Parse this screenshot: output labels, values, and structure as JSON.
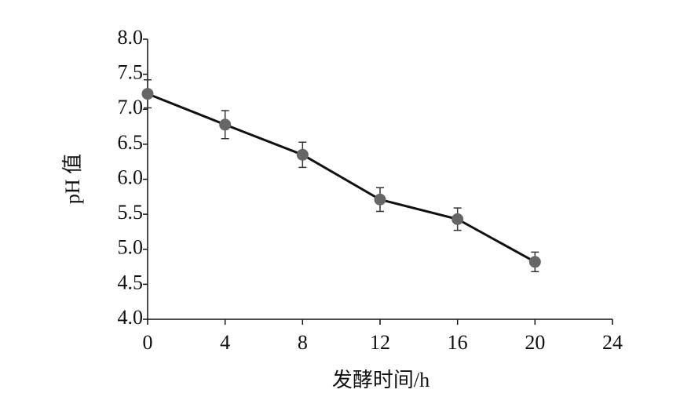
{
  "chart_data": {
    "type": "line",
    "x_label": "发酵时间/h",
    "y_label": "pH 值",
    "x": [
      0,
      4,
      8,
      12,
      16,
      20
    ],
    "series": [
      {
        "color": "#111111",
        "marker_color": "#666666",
        "values": [
          7.22,
          6.78,
          6.35,
          5.71,
          5.43,
          4.82
        ],
        "errors": [
          0.2,
          0.2,
          0.18,
          0.17,
          0.16,
          0.14
        ]
      }
    ],
    "xlim": [
      0,
      24
    ],
    "xticks": [
      0,
      4,
      8,
      12,
      16,
      20,
      24
    ],
    "ylim": [
      4,
      8
    ],
    "yticks": [
      {
        "value": 4,
        "label": "4.0"
      },
      4.5,
      {
        "value": 5,
        "label": "5.0"
      },
      5.5,
      {
        "value": 6,
        "label": "6.0"
      },
      6.5,
      {
        "value": 7,
        "label": "7.0"
      },
      7.5,
      {
        "value": 8,
        "label": "8.0"
      }
    ],
    "grid": false
  }
}
